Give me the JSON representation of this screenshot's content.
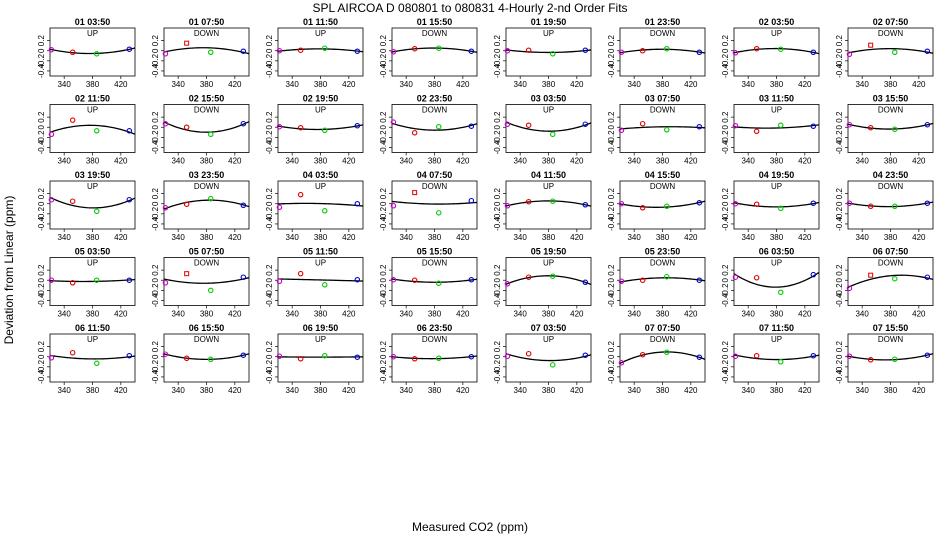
{
  "chart_data": {
    "type": "scatter",
    "title": "SPL   AIRCOA D   080801 to 080831   4-Hourly 2-nd Order Fits",
    "xlabel": "Measured CO2 (ppm)",
    "ylabel": "Deviation from Linear (ppm)",
    "xlim": [
      320,
      440
    ],
    "ylim": [
      -0.5,
      0.45
    ],
    "xticks": [
      340,
      380,
      420
    ],
    "xtick_labels": [
      "340",
      "380",
      "420"
    ],
    "yticks": [
      -0.4,
      -0.2,
      0.0,
      0.2
    ],
    "ytick_labels": [
      "-0.4",
      "-0.2",
      "0",
      "0.2"
    ],
    "point_x": [
      322,
      352,
      386,
      432
    ],
    "point_colors": [
      "#cc00cc",
      "#e00000",
      "#00cc00",
      "#0000cc"
    ],
    "curve_color": "#000000",
    "panels": [
      {
        "time": "01 03:50",
        "mode": "UP",
        "y": [
          0.02,
          -0.03,
          -0.06,
          0.03
        ]
      },
      {
        "time": "01 07:50",
        "mode": "DOWN",
        "y": [
          -0.06,
          0.15,
          -0.03,
          -0.01
        ]
      },
      {
        "time": "01 11:50",
        "mode": "UP",
        "y": [
          0.0,
          0.01,
          0.05,
          -0.01
        ]
      },
      {
        "time": "01 15:50",
        "mode": "DOWN",
        "y": [
          -0.02,
          0.04,
          0.05,
          -0.01
        ]
      },
      {
        "time": "01 19:50",
        "mode": "UP",
        "y": [
          0.0,
          0.01,
          -0.06,
          0.01
        ]
      },
      {
        "time": "01 23:50",
        "mode": "DOWN",
        "y": [
          -0.03,
          0.0,
          0.04,
          -0.03
        ]
      },
      {
        "time": "02 03:50",
        "mode": "UP",
        "y": [
          -0.04,
          0.04,
          0.03,
          -0.03
        ]
      },
      {
        "time": "02 07:50",
        "mode": "DOWN",
        "y": [
          -0.07,
          0.11,
          -0.03,
          -0.01
        ]
      },
      {
        "time": "02 11:50",
        "mode": "UP",
        "y": [
          -0.14,
          0.14,
          -0.07,
          -0.07
        ]
      },
      {
        "time": "02 15:50",
        "mode": "DOWN",
        "y": [
          0.07,
          0.0,
          -0.14,
          0.07
        ]
      },
      {
        "time": "02 19:50",
        "mode": "UP",
        "y": [
          0.01,
          -0.01,
          -0.06,
          0.03
        ]
      },
      {
        "time": "02 23:50",
        "mode": "DOWN",
        "y": [
          0.1,
          -0.11,
          0.01,
          0.02
        ]
      },
      {
        "time": "03 03:50",
        "mode": "UP",
        "y": [
          0.06,
          0.04,
          -0.14,
          0.06
        ]
      },
      {
        "time": "03 07:50",
        "mode": "DOWN",
        "y": [
          -0.06,
          0.07,
          -0.05,
          0.01
        ]
      },
      {
        "time": "03 11:50",
        "mode": "UP",
        "y": [
          0.03,
          -0.08,
          0.04,
          0.02
        ]
      },
      {
        "time": "03 15:50",
        "mode": "DOWN",
        "y": [
          0.05,
          -0.01,
          -0.04,
          0.05
        ]
      },
      {
        "time": "03 19:50",
        "mode": "UP",
        "y": [
          0.08,
          0.05,
          -0.15,
          0.08
        ]
      },
      {
        "time": "03 23:50",
        "mode": "DOWN",
        "y": [
          -0.08,
          -0.01,
          0.1,
          -0.03
        ]
      },
      {
        "time": "04 03:50",
        "mode": "UP",
        "y": [
          -0.07,
          0.18,
          -0.14,
          0.0
        ]
      },
      {
        "time": "04 07:50",
        "mode": "DOWN",
        "y": [
          -0.04,
          0.22,
          -0.18,
          0.06
        ]
      },
      {
        "time": "04 11:50",
        "mode": "UP",
        "y": [
          -0.04,
          0.04,
          0.05,
          -0.02
        ]
      },
      {
        "time": "04 15:50",
        "mode": "DOWN",
        "y": [
          0.0,
          -0.08,
          -0.05,
          0.02
        ]
      },
      {
        "time": "04 19:50",
        "mode": "UP",
        "y": [
          0.0,
          -0.01,
          -0.09,
          0.01
        ]
      },
      {
        "time": "04 23:50",
        "mode": "DOWN",
        "y": [
          0.01,
          -0.05,
          -0.05,
          0.01
        ]
      },
      {
        "time": "05 03:50",
        "mode": "UP",
        "y": [
          0.0,
          -0.05,
          0.0,
          0.0
        ]
      },
      {
        "time": "05 07:50",
        "mode": "DOWN",
        "y": [
          -0.05,
          0.13,
          -0.2,
          0.06
        ]
      },
      {
        "time": "05 11:50",
        "mode": "UP",
        "y": [
          -0.02,
          0.13,
          -0.09,
          0.01
        ]
      },
      {
        "time": "05 15:50",
        "mode": "DOWN",
        "y": [
          0.01,
          0.0,
          -0.06,
          0.01
        ]
      },
      {
        "time": "05 19:50",
        "mode": "UP",
        "y": [
          -0.07,
          0.06,
          0.08,
          -0.04
        ]
      },
      {
        "time": "05 23:50",
        "mode": "DOWN",
        "y": [
          -0.02,
          0.0,
          0.07,
          0.0
        ]
      },
      {
        "time": "06 03:50",
        "mode": "UP",
        "y": [
          0.06,
          0.05,
          -0.24,
          0.11
        ]
      },
      {
        "time": "06 07:50",
        "mode": "DOWN",
        "y": [
          -0.16,
          0.1,
          0.03,
          0.06
        ]
      },
      {
        "time": "06 11:50",
        "mode": "UP",
        "y": [
          -0.02,
          0.08,
          -0.13,
          0.02
        ]
      },
      {
        "time": "06 15:50",
        "mode": "DOWN",
        "y": [
          0.05,
          -0.03,
          -0.05,
          0.03
        ]
      },
      {
        "time": "06 19:50",
        "mode": "UP",
        "y": [
          0.01,
          -0.04,
          0.02,
          -0.01
        ]
      },
      {
        "time": "06 23:50",
        "mode": "DOWN",
        "y": [
          0.0,
          -0.04,
          -0.03,
          0.0
        ]
      },
      {
        "time": "07 03:50",
        "mode": "UP",
        "y": [
          0.01,
          0.06,
          -0.16,
          0.03
        ]
      },
      {
        "time": "07 07:50",
        "mode": "DOWN",
        "y": [
          -0.12,
          0.04,
          0.09,
          -0.01
        ]
      },
      {
        "time": "07 11:50",
        "mode": "UP",
        "y": [
          0.01,
          0.02,
          -0.1,
          0.02
        ]
      },
      {
        "time": "07 15:50",
        "mode": "DOWN",
        "y": [
          0.01,
          -0.06,
          -0.05,
          0.03
        ]
      }
    ]
  }
}
